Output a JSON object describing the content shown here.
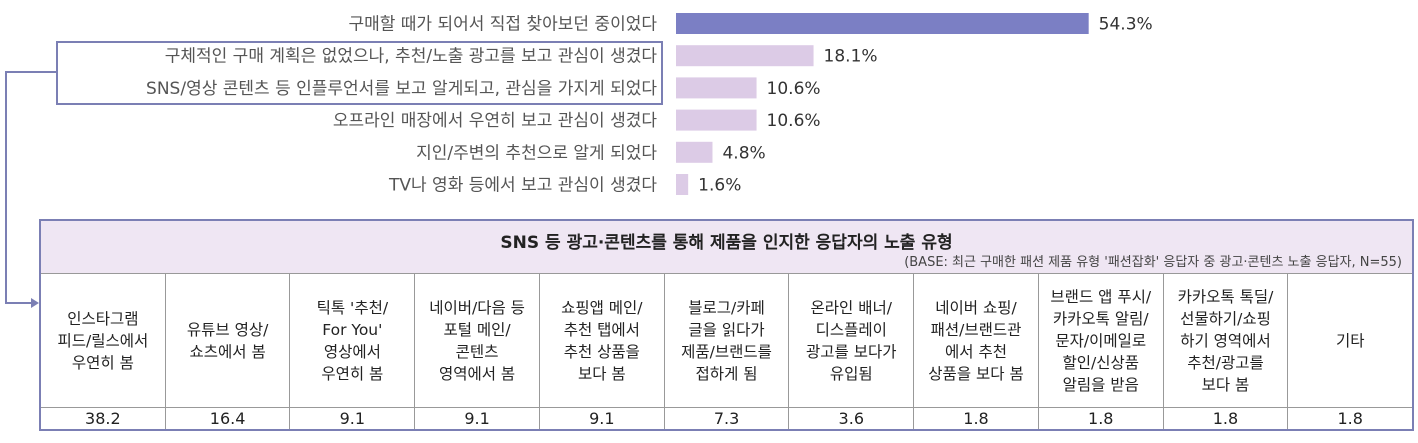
{
  "chart_data": [
    {
      "type": "bar",
      "orientation": "horizontal",
      "categories": [
        "구매할 때가 되어서 직접 찾아보던 중이었다",
        "구체적인 구매 계획은 없었으나, 추천/노출 광고를 보고 관심이 생겼다",
        "SNS/영상 콘텐츠 등 인플루언서를 보고 알게되고, 관심을 가지게 되었다",
        "오프라인 매장에서 우연히 보고 관심이 생겼다",
        "지인/주변의 추천으로 알게 되었다",
        "TV나 영화 등에서 보고 관심이 생겼다"
      ],
      "values": [
        54.3,
        18.1,
        10.6,
        10.6,
        4.8,
        1.6
      ],
      "value_labels": [
        "54.3%",
        "18.1%",
        "10.6%",
        "10.6%",
        "4.8%",
        "1.6%"
      ],
      "colors": [
        "#7b7fc4",
        "#dccbe6",
        "#dccbe6",
        "#dccbe6",
        "#dccbe6",
        "#dccbe6"
      ],
      "xlim": [
        0,
        100
      ],
      "highlighted_categories": [
        1,
        2
      ]
    },
    {
      "type": "table",
      "title": "SNS 등 광고·콘텐츠를 통해 제품을 인지한 응답자의 노출 유형",
      "base_note": "(BASE: 최근 구매한 패션 제품 유형 '패션잡화' 응답자 중 광고·콘텐츠 노출 응답자, N=55)",
      "columns": [
        [
          "인스타그램",
          "피드/릴스에서",
          "우연히 봄"
        ],
        [
          "유튜브 영상/",
          "쇼츠에서 봄"
        ],
        [
          "틱톡 '추천/",
          "For You'",
          "영상에서",
          "우연히 봄"
        ],
        [
          "네이버/다음 등",
          "포털 메인/",
          "콘텐츠",
          "영역에서 봄"
        ],
        [
          "쇼핑앱 메인/",
          "추천 탭에서",
          "추천 상품을",
          "보다 봄"
        ],
        [
          "블로그/카페",
          "글을 읽다가",
          "제품/브랜드를",
          "접하게 됨"
        ],
        [
          "온라인 배너/",
          "디스플레이",
          "광고를 보다가",
          "유입됨"
        ],
        [
          "네이버 쇼핑/",
          "패션/브랜드관",
          "에서 추천",
          "상품을 보다 봄"
        ],
        [
          "브랜드 앱 푸시/",
          "카카오톡 알림/",
          "문자/이메일로",
          "할인/신상품",
          "알림을 받음"
        ],
        [
          "카카오톡 톡딜/",
          "선물하기/쇼핑",
          "하기 영역에서",
          "추천/광고를",
          "보다 봄"
        ],
        [
          "기타"
        ]
      ],
      "values": [
        "38.2",
        "16.4",
        "9.1",
        "9.1",
        "9.1",
        "7.3",
        "3.6",
        "1.8",
        "1.8",
        "1.8",
        "1.8"
      ]
    }
  ]
}
